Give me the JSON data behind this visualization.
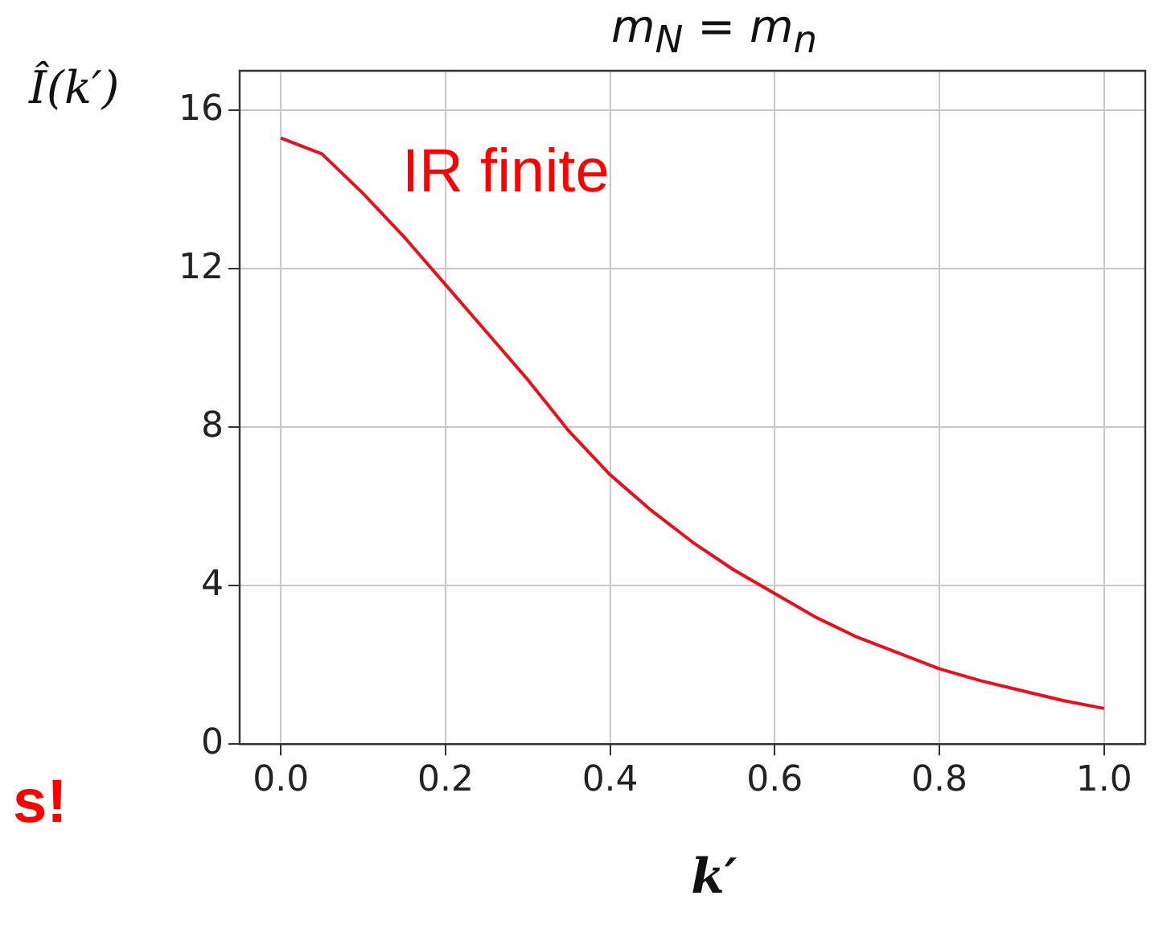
{
  "chart_data": {
    "type": "line",
    "title": "m$_{N}$ = m$_{n}$",
    "xlabel": "k′",
    "ylabel": "Î(k′)",
    "annotations": [
      "IR finite",
      "s!"
    ],
    "x": [
      0,
      0.05,
      0.1,
      0.15,
      0.2,
      0.25,
      0.3,
      0.35,
      0.4,
      0.45,
      0.5,
      0.55,
      0.6,
      0.65,
      0.7,
      0.75,
      0.8,
      0.85,
      0.9,
      0.95,
      1.0
    ],
    "series": [
      {
        "color": "#e8101c",
        "values": [
          15.3,
          14.9,
          13.9,
          12.8,
          11.6,
          10.4,
          9.2,
          7.9,
          6.8,
          5.9,
          5.1,
          4.4,
          3.8,
          3.2,
          2.7,
          2.3,
          1.9,
          1.6,
          1.35,
          1.1,
          0.9
        ]
      }
    ],
    "xlim": [
      -0.05,
      1.05
    ],
    "ylim": [
      0,
      17
    ],
    "xticks": [
      {
        "value": 0,
        "label": "0.0"
      },
      {
        "value": 0.2,
        "label": "0.2"
      },
      {
        "value": 0.4,
        "label": "0.4"
      },
      {
        "value": 0.6,
        "label": "0.6"
      },
      {
        "value": 0.8,
        "label": "0.8"
      },
      {
        "value": 1,
        "label": "1.0"
      }
    ],
    "yticks": [
      0,
      4,
      8,
      12,
      16
    ],
    "grid": true,
    "marker": "none",
    "line_style": "solid"
  }
}
